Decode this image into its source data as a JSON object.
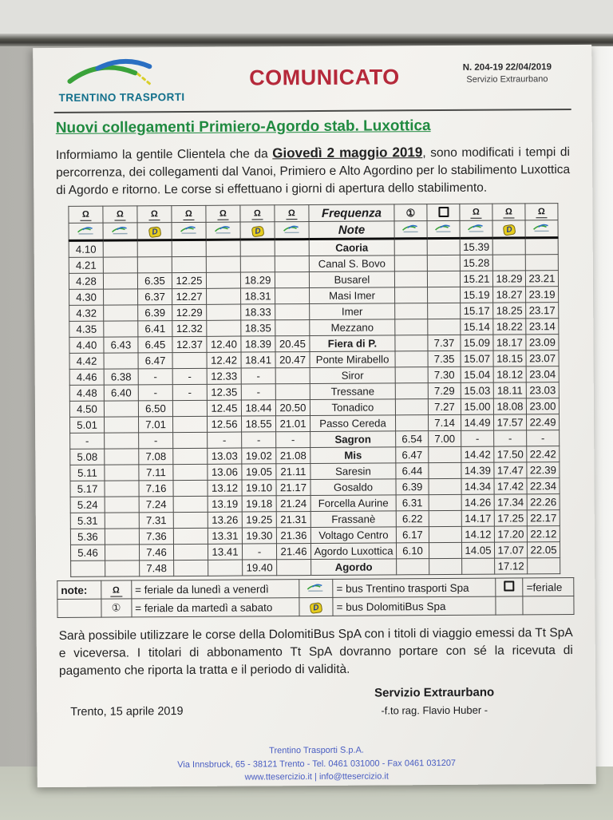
{
  "header": {
    "logo_text": "TRENTINO TRASPORTI",
    "comunicato": "COMUNICATO",
    "doc_number": "N. 204-19  22/04/2019",
    "service": "Servizio Extraurbano"
  },
  "title": "Nuovi collegamenti Primiero-Agordo stab. Luxottica",
  "intro": {
    "before": "Informiamo la gentile Clientela che da ",
    "highlight": "Giovedì 2 maggio 2019",
    "after": ", sono modificati i tempi di percorrenza, dei collegamenti dal Vanoi, Primiero e Alto Agordino per lo stabilimento Luxottica di Agordo e ritorno. Le corse si effettuano i giorni di apertura dello stabilimento."
  },
  "table": {
    "center_header": {
      "line1": "Frequenza",
      "line2": "Note"
    },
    "left_cols": [
      {
        "sym": "lv",
        "logo": "tt"
      },
      {
        "sym": "lv",
        "logo": "tt"
      },
      {
        "sym": "lv",
        "logo": "db"
      },
      {
        "sym": "lv",
        "logo": "tt"
      },
      {
        "sym": "lv",
        "logo": "tt"
      },
      {
        "sym": "lv",
        "logo": "db"
      },
      {
        "sym": "lv",
        "logo": "tt"
      }
    ],
    "right_cols": [
      {
        "sym": "c1",
        "logo": "tt"
      },
      {
        "sym": "sq",
        "logo": "tt"
      },
      {
        "sym": "lv",
        "logo": "tt"
      },
      {
        "sym": "lv",
        "logo": "db"
      },
      {
        "sym": "lv",
        "logo": "tt"
      }
    ],
    "rows": [
      {
        "name": "Caoria",
        "bold": true,
        "left": [
          "4.10",
          "",
          "",
          "",
          "",
          "",
          ""
        ],
        "right": [
          "",
          "",
          "15.39",
          "",
          ""
        ]
      },
      {
        "name": "Canal S. Bovo",
        "bold": false,
        "left": [
          "4.21",
          "",
          "",
          "",
          "",
          "",
          ""
        ],
        "right": [
          "",
          "",
          "15.28",
          "",
          ""
        ]
      },
      {
        "name": "Busarel",
        "bold": false,
        "left": [
          "4.28",
          "",
          "6.35",
          "12.25",
          "",
          "18.29",
          ""
        ],
        "right": [
          "",
          "",
          "15.21",
          "18.29",
          "23.21"
        ]
      },
      {
        "name": "Masi Imer",
        "bold": false,
        "left": [
          "4.30",
          "",
          "6.37",
          "12.27",
          "",
          "18.31",
          ""
        ],
        "right": [
          "",
          "",
          "15.19",
          "18.27",
          "23.19"
        ]
      },
      {
        "name": "Imer",
        "bold": false,
        "left": [
          "4.32",
          "",
          "6.39",
          "12.29",
          "",
          "18.33",
          ""
        ],
        "right": [
          "",
          "",
          "15.17",
          "18.25",
          "23.17"
        ]
      },
      {
        "name": "Mezzano",
        "bold": false,
        "left": [
          "4.35",
          "",
          "6.41",
          "12.32",
          "",
          "18.35",
          ""
        ],
        "right": [
          "",
          "",
          "15.14",
          "18.22",
          "23.14"
        ]
      },
      {
        "name": "Fiera di P.",
        "bold": true,
        "left": [
          "4.40",
          "6.43",
          "6.45",
          "12.37",
          "12.40",
          "18.39",
          "20.45"
        ],
        "right": [
          "",
          "7.37",
          "15.09",
          "18.17",
          "23.09"
        ]
      },
      {
        "name": "Ponte Mirabello",
        "bold": false,
        "left": [
          "4.42",
          "",
          "6.47",
          "",
          "12.42",
          "18.41",
          "20.47"
        ],
        "right": [
          "",
          "7.35",
          "15.07",
          "18.15",
          "23.07"
        ]
      },
      {
        "name": "Siror",
        "bold": false,
        "left": [
          "4.46",
          "6.38",
          "-",
          "-",
          "12.33",
          "-",
          ""
        ],
        "right": [
          "",
          "7.30",
          "15.04",
          "18.12",
          "23.04"
        ]
      },
      {
        "name": "Tressane",
        "bold": false,
        "left": [
          "4.48",
          "6.40",
          "-",
          "-",
          "12.35",
          "-",
          ""
        ],
        "right": [
          "",
          "7.29",
          "15.03",
          "18.11",
          "23.03"
        ]
      },
      {
        "name": "Tonadico",
        "bold": false,
        "left": [
          "4.50",
          "",
          "6.50",
          "",
          "12.45",
          "18.44",
          "20.50"
        ],
        "right": [
          "",
          "7.27",
          "15.00",
          "18.08",
          "23.00"
        ]
      },
      {
        "name": "Passo Cereda",
        "bold": false,
        "left": [
          "5.01",
          "",
          "7.01",
          "",
          "12.56",
          "18.55",
          "21.01"
        ],
        "right": [
          "",
          "7.14",
          "14.49",
          "17.57",
          "22.49"
        ]
      },
      {
        "name": "Sagron",
        "bold": true,
        "left": [
          "-",
          "",
          "-",
          "",
          "-",
          "-",
          "-"
        ],
        "right": [
          "6.54",
          "7.00",
          "-",
          "-",
          "-"
        ]
      },
      {
        "name": "Mis",
        "bold": true,
        "left": [
          "5.08",
          "",
          "7.08",
          "",
          "13.03",
          "19.02",
          "21.08"
        ],
        "right": [
          "6.47",
          "",
          "14.42",
          "17.50",
          "22.42"
        ]
      },
      {
        "name": "Saresin",
        "bold": false,
        "left": [
          "5.11",
          "",
          "7.11",
          "",
          "13.06",
          "19.05",
          "21.11"
        ],
        "right": [
          "6.44",
          "",
          "14.39",
          "17.47",
          "22.39"
        ]
      },
      {
        "name": "Gosaldo",
        "bold": false,
        "left": [
          "5.17",
          "",
          "7.16",
          "",
          "13.12",
          "19.10",
          "21.17"
        ],
        "right": [
          "6.39",
          "",
          "14.34",
          "17.42",
          "22.34"
        ]
      },
      {
        "name": "Forcella Aurine",
        "bold": false,
        "left": [
          "5.24",
          "",
          "7.24",
          "",
          "13.19",
          "19.18",
          "21.24"
        ],
        "right": [
          "6.31",
          "",
          "14.26",
          "17.34",
          "22.26"
        ]
      },
      {
        "name": "Frassanè",
        "bold": false,
        "left": [
          "5.31",
          "",
          "7.31",
          "",
          "13.26",
          "19.25",
          "21.31"
        ],
        "right": [
          "6.22",
          "",
          "14.17",
          "17.25",
          "22.17"
        ]
      },
      {
        "name": "Voltago Centro",
        "bold": false,
        "left": [
          "5.36",
          "",
          "7.36",
          "",
          "13.31",
          "19.30",
          "21.36"
        ],
        "right": [
          "6.17",
          "",
          "14.12",
          "17.20",
          "22.12"
        ]
      },
      {
        "name": "Agordo Luxottica",
        "bold": false,
        "left": [
          "5.46",
          "",
          "7.46",
          "",
          "13.41",
          "-",
          "21.46"
        ],
        "right": [
          "6.10",
          "",
          "14.05",
          "17.07",
          "22.05"
        ]
      },
      {
        "name": "Agordo",
        "bold": true,
        "left": [
          "",
          "",
          "7.48",
          "",
          "",
          "19.40",
          ""
        ],
        "right": [
          "",
          "",
          "",
          "17.12",
          ""
        ]
      }
    ],
    "notes": {
      "label": "note:",
      "rows": [
        {
          "sym": "lv",
          "text": "= feriale da lunedì a venerdì",
          "logo": "tt",
          "text2": "= bus Trentino trasporti Spa",
          "sym2": "sq",
          "text3": "=feriale"
        },
        {
          "sym": "c1",
          "text": "= feriale da martedì a sabato",
          "logo": "db",
          "text2": "= bus DolomitiBus Spa",
          "sym2": "",
          "text3": ""
        }
      ]
    }
  },
  "outro": "Sarà possibile utilizzare le corse della DolomitiBus SpA con i titoli di viaggio emessi da Tt SpA e viceversa. I titolari di abbonamento Tt SpA dovranno portare con sé la ricevuta di pagamento che riporta la tratta e il periodo di validità.",
  "signature": {
    "place_date": "Trento, 15 aprile 2019",
    "office": "Servizio Extraurbano",
    "signer": "-f.to rag. Flavio Huber -"
  },
  "footer": {
    "line1": "Trentino Trasporti S.p.A.",
    "line2": "Via Innsbruck, 65 - 38121 Trento - Tel. 0461 031000 - Fax 0461 031207",
    "line3": "www.ttesercizio.it | info@ttesercizio.it"
  },
  "colors": {
    "title_green": "#208a40",
    "comunicato_red": "#b5293a",
    "logo_teal": "#13708c",
    "footer_blue": "#4a5ec2",
    "dolomitibus_yellow": "#e6cd1e"
  }
}
